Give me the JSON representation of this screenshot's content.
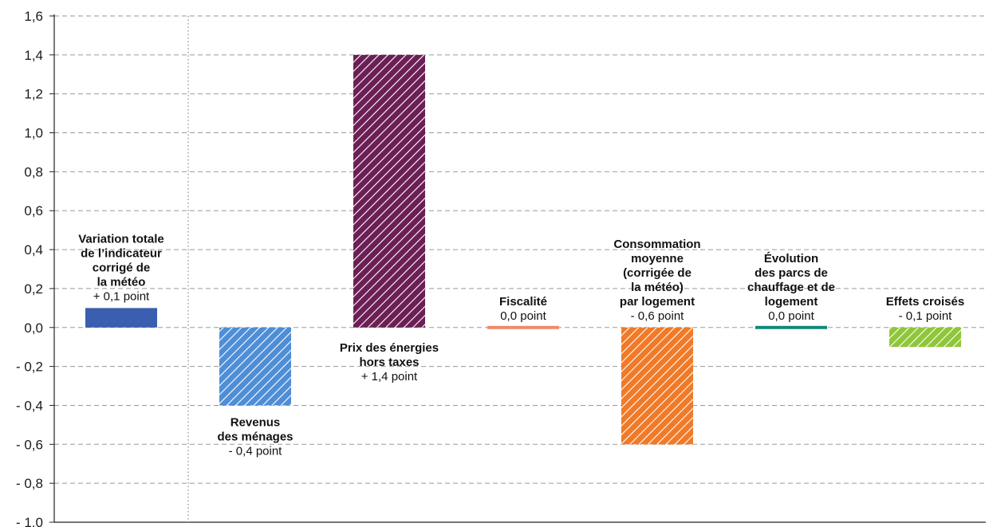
{
  "chart_data": {
    "type": "bar",
    "ylim": [
      -1.0,
      1.6
    ],
    "ytick_step": 0.2,
    "ytick_labels": [
      "- 1,0",
      "- 0,8",
      "- 0,6",
      "- 0,4",
      "- 0,2",
      "0,0",
      "0,2",
      "0,4",
      "0,6",
      "0,8",
      "1,0",
      "1,2",
      "1,4",
      "1,6"
    ],
    "grid": "horizontal dashed",
    "categories": [
      {
        "label_lines": [
          "Variation totale",
          "de l’indicateur",
          "corrigé de",
          "la météo"
        ],
        "value_text": "+ 0,1 point",
        "value": 0.1,
        "color": "#3a5fb0",
        "pattern": "solid",
        "label_position": "above"
      },
      {
        "label_lines": [
          "Revenus",
          "des ménages"
        ],
        "value_text": "- 0,4 point",
        "value": -0.4,
        "color": "#4f8ed6",
        "pattern": "hatched",
        "label_position": "below"
      },
      {
        "label_lines": [
          "Prix des énergies",
          "hors taxes"
        ],
        "value_text": "+ 1,4 point",
        "value": 1.4,
        "color": "#6b1f55",
        "pattern": "hatched",
        "label_position": "below-axis"
      },
      {
        "label_lines": [
          "Fiscalité"
        ],
        "value_text": "0,0 point",
        "value": 0.0,
        "color": "#f08a6a",
        "pattern": "solid",
        "label_position": "above"
      },
      {
        "label_lines": [
          "Consommation",
          "moyenne",
          "(corrigée de",
          "la météo)",
          "par logement"
        ],
        "value_text": "- 0,6 point",
        "value": -0.6,
        "color": "#f07a28",
        "pattern": "hatched",
        "label_position": "above-axis"
      },
      {
        "label_lines": [
          "Évolution",
          "des parcs de",
          "chauffage et de",
          "logement"
        ],
        "value_text": "0,0 point",
        "value": 0.0,
        "color": "#0e8a7a",
        "pattern": "solid",
        "label_position": "above"
      },
      {
        "label_lines": [
          "Effets croisés"
        ],
        "value_text": "- 0,1 point",
        "value": -0.1,
        "color": "#8fc63a",
        "pattern": "hatched",
        "label_position": "above-axis"
      }
    ]
  }
}
